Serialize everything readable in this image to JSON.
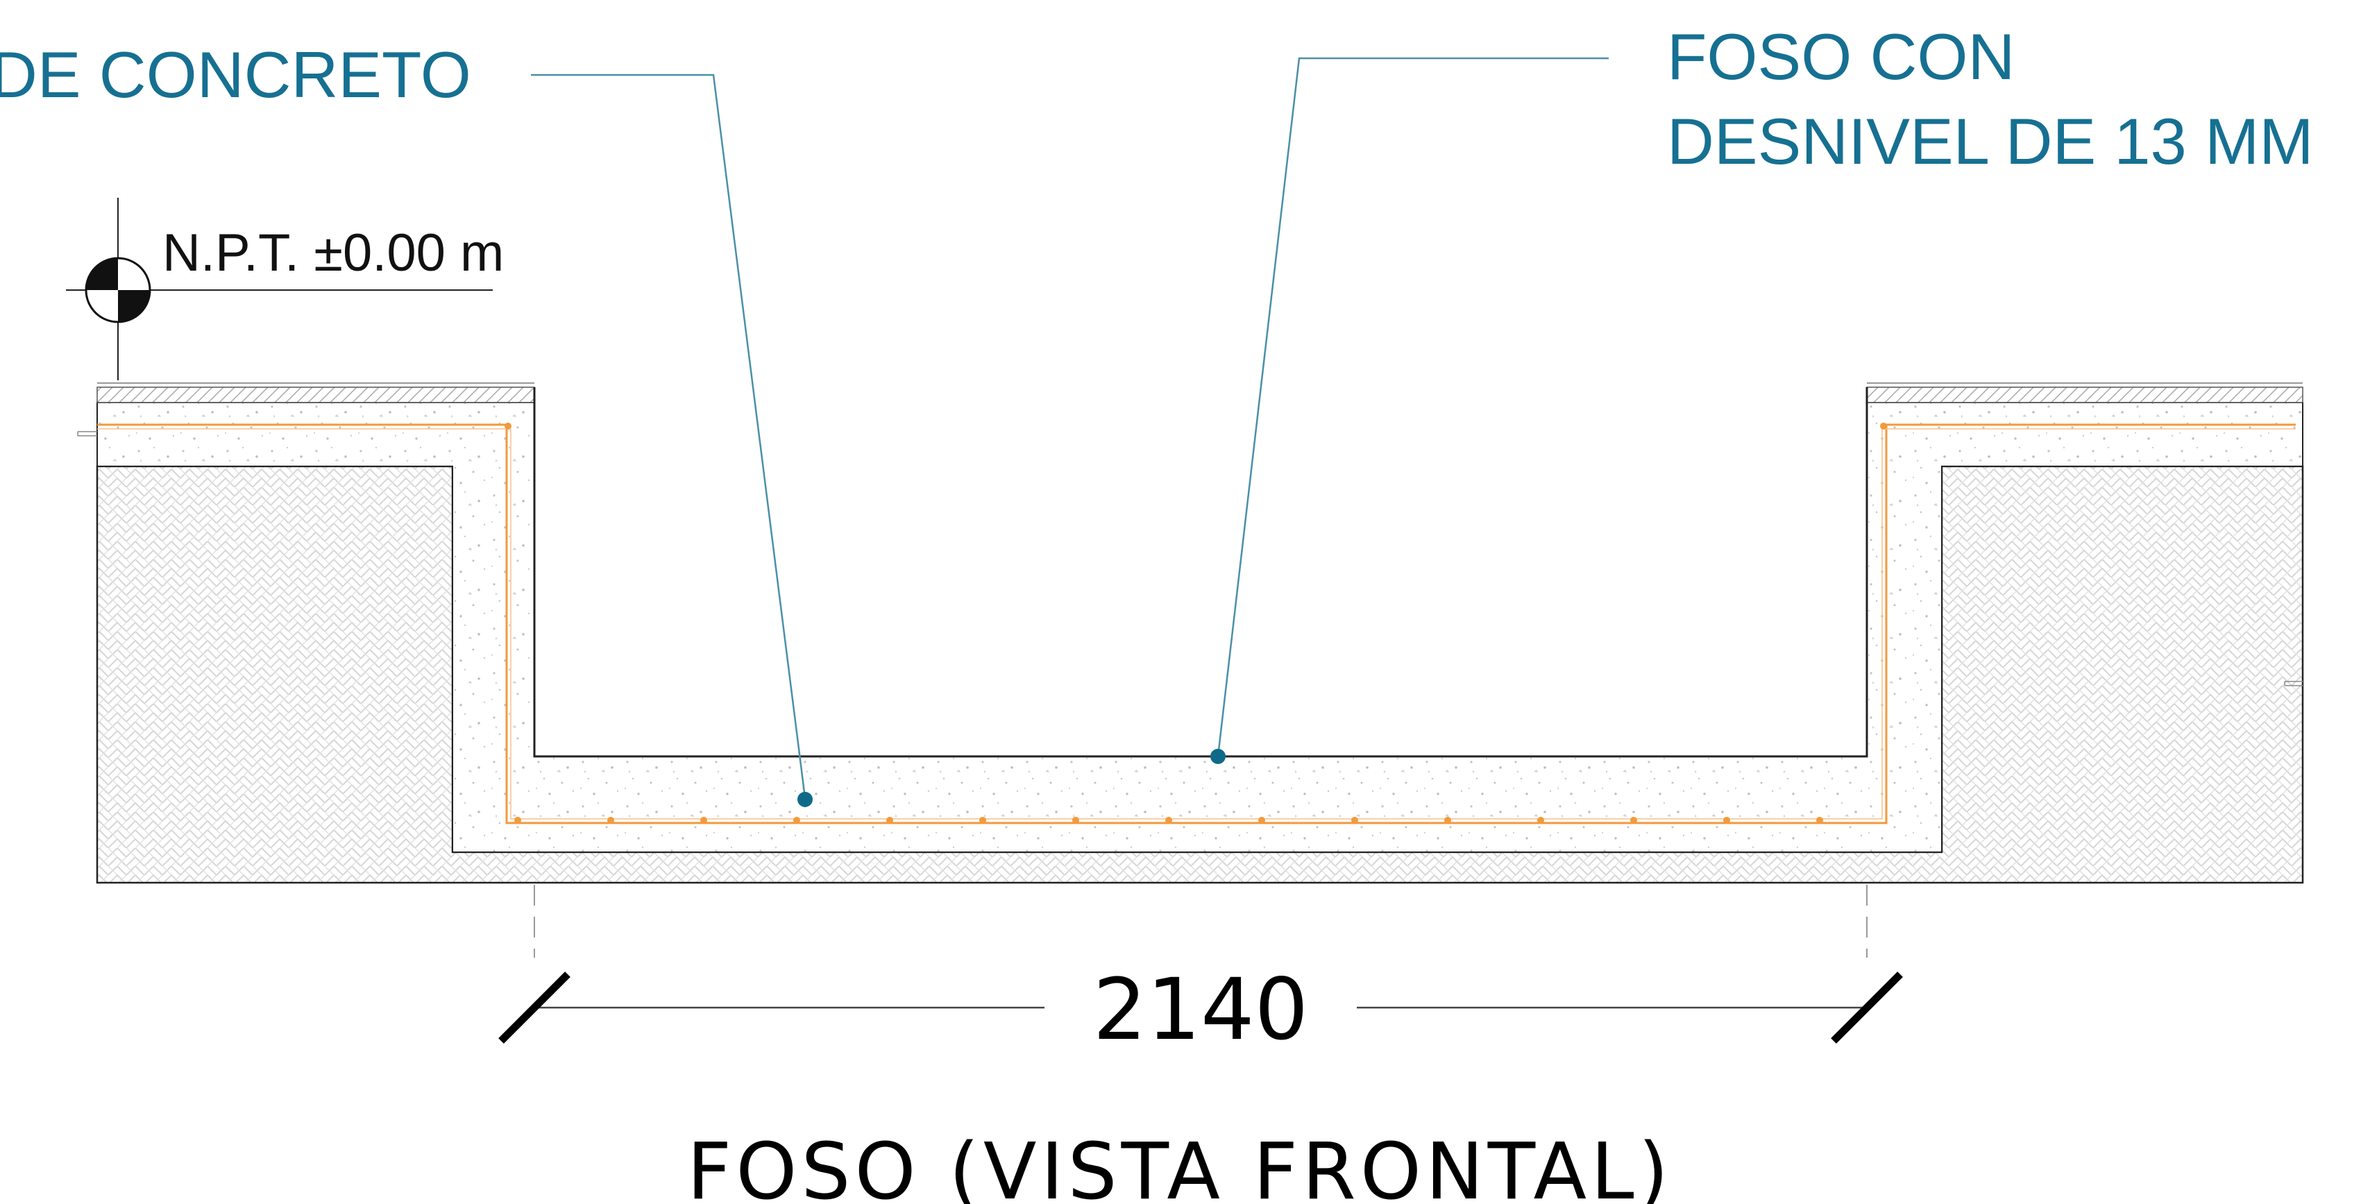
{
  "labels": {
    "concrete_label": "DE CONCRETO",
    "pit_label_line1": "FOSO CON",
    "pit_label_line2": "DESNIVEL DE 13 MM",
    "level_marker": "N.P.T. ±0.00 m",
    "dimension_value": "2140",
    "drawing_title": "FOSO (VISTA FRONTAL)"
  },
  "colors": {
    "callout_text": "#167092",
    "leader_line": "#4a8fa8",
    "leader_dot": "#0f6a8a",
    "rebar": "#f29a3c",
    "outline": "#222222",
    "soil_hatch": "#d3d3d3",
    "concrete_speckle": "#bdbdbd"
  }
}
